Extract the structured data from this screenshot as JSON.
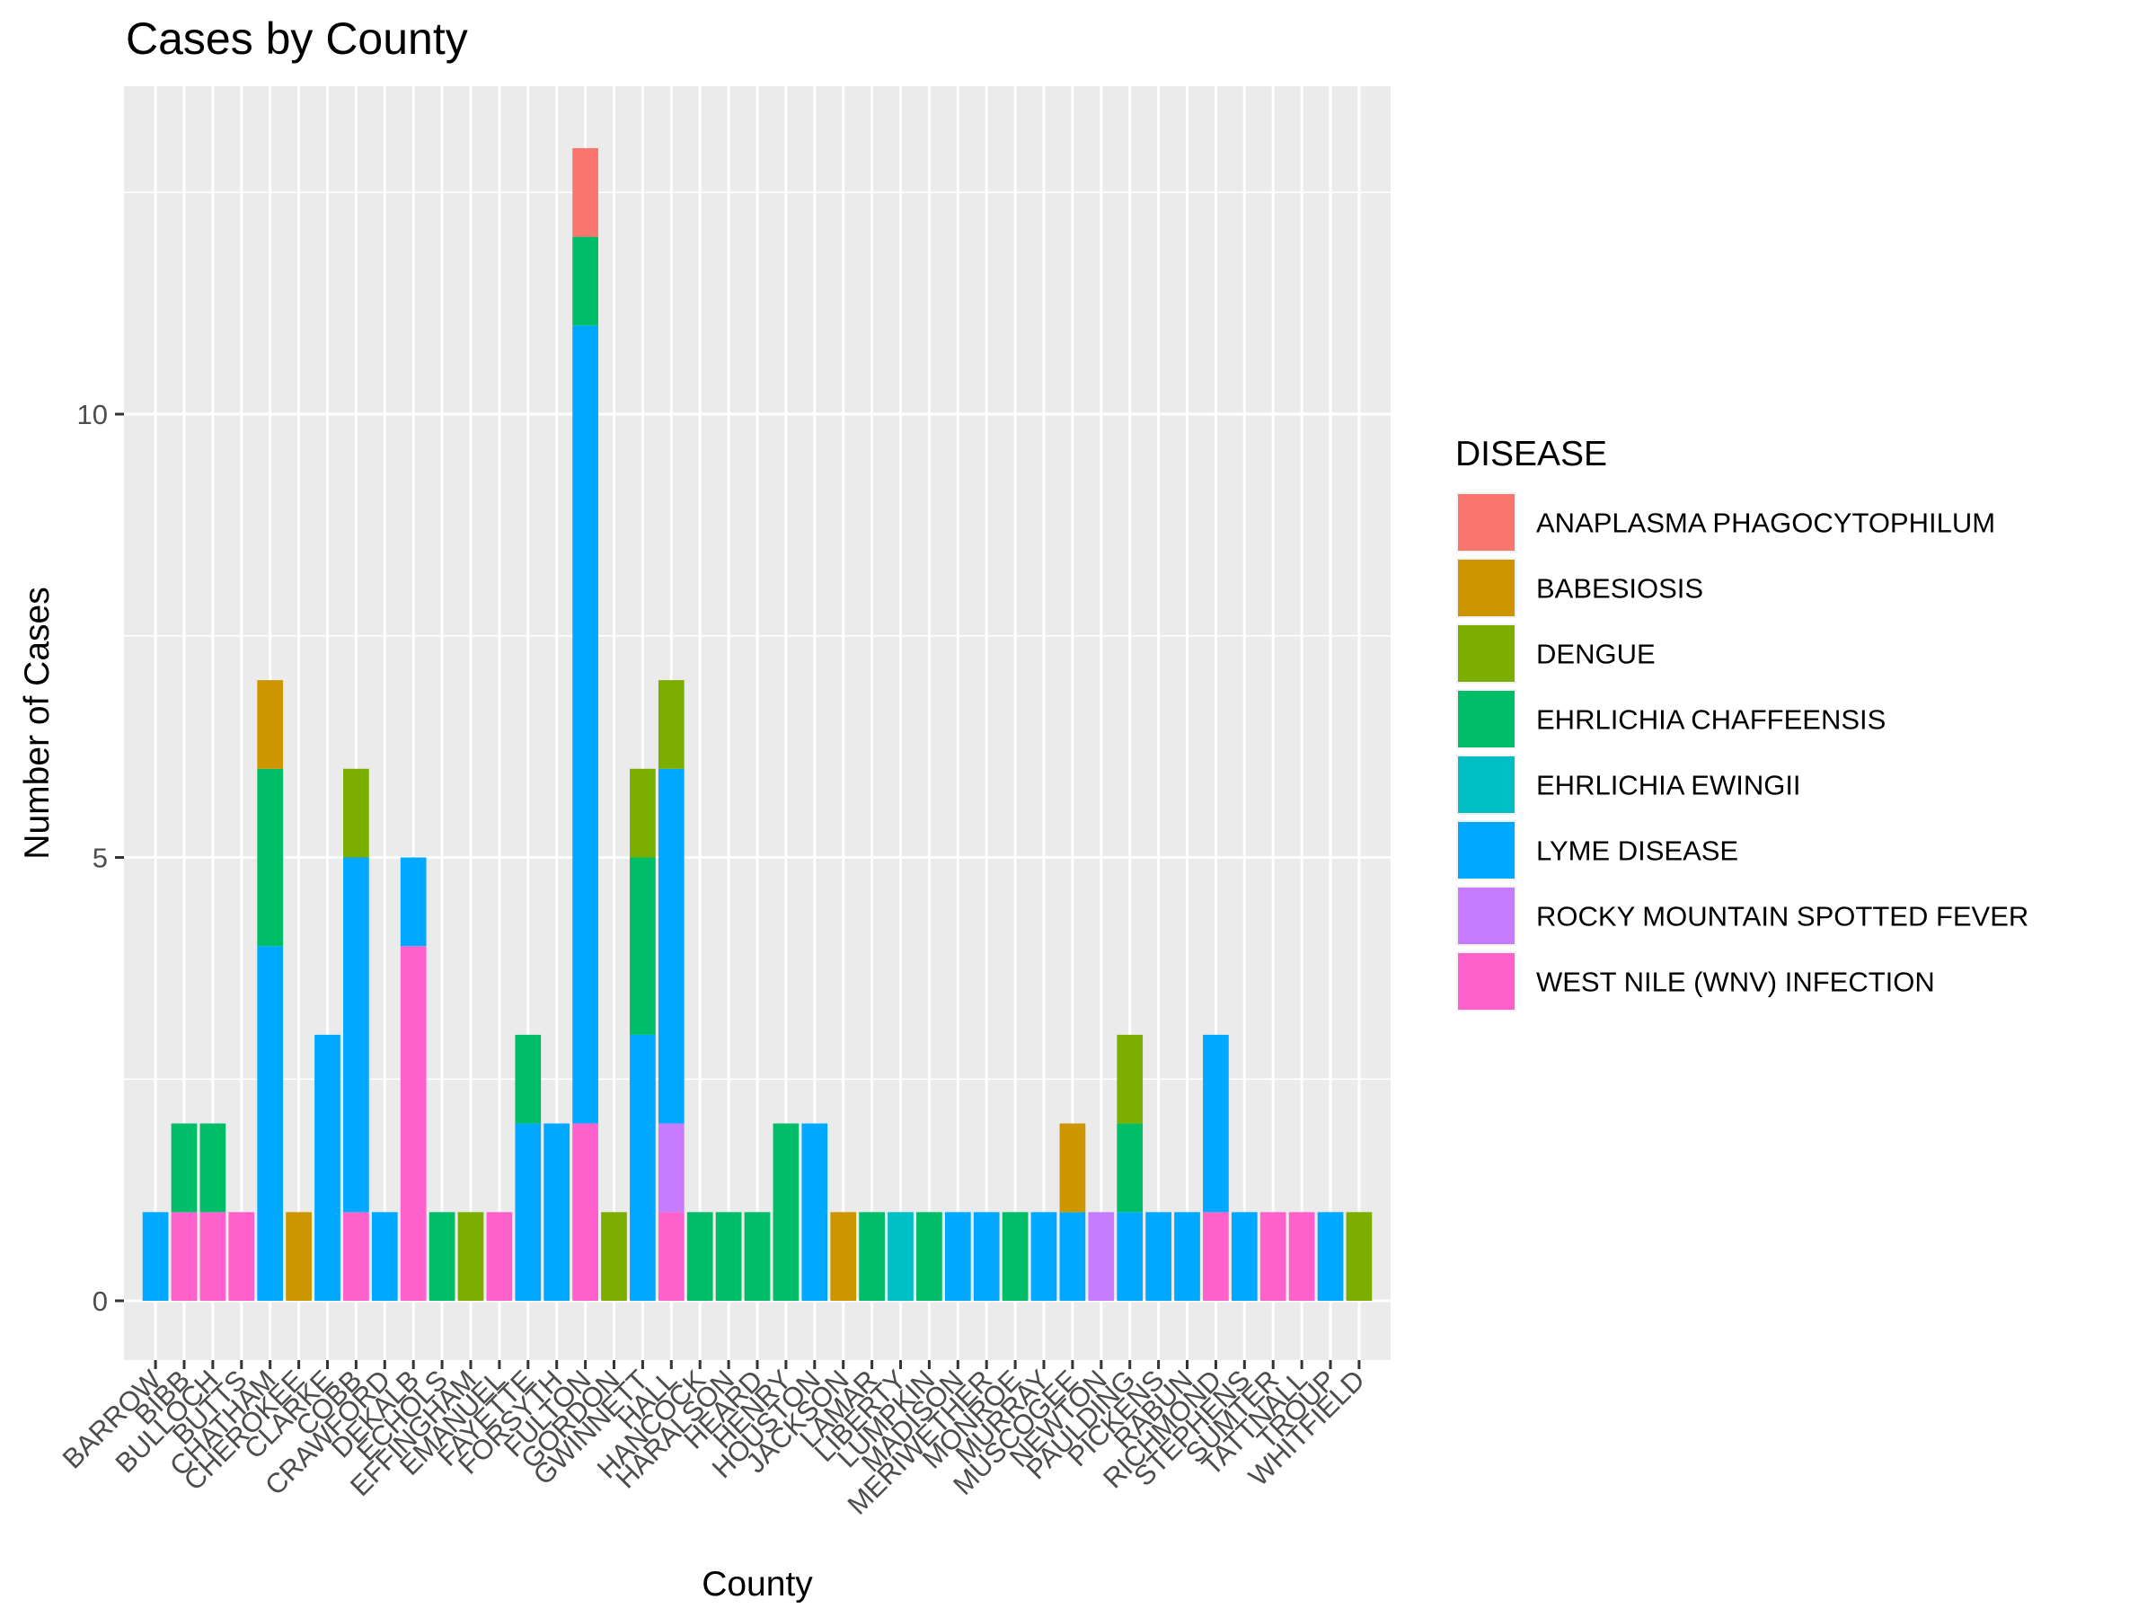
{
  "chart_data": {
    "type": "bar",
    "stacked": true,
    "title": "Cases by County",
    "xlabel": "County",
    "ylabel": "Number of Cases",
    "ylim": [
      0,
      13.65
    ],
    "yticks": [
      0,
      5,
      10
    ],
    "grid": true,
    "legend": {
      "title": "DISEASE",
      "position": "right"
    },
    "categories": [
      "BARROW",
      "BIBB",
      "BULLOCH",
      "BUTTS",
      "CHATHAM",
      "CHEROKEE",
      "CLARKE",
      "COBB",
      "CRAWFORD",
      "DEKALB",
      "ECHOLS",
      "EFFINGHAM",
      "EMANUEL",
      "FAYETTE",
      "FORSYTH",
      "FULTON",
      "GORDON",
      "GWINNETT",
      "HALL",
      "HANCOCK",
      "HARALSON",
      "HEARD",
      "HENRY",
      "HOUSTON",
      "JACKSON",
      "LAMAR",
      "LIBERTY",
      "LUMPKIN",
      "MADISON",
      "MERIWETHER",
      "MONROE",
      "MURRAY",
      "MUSCOGEE",
      "NEWTON",
      "PAULDING",
      "PICKENS",
      "RABUN",
      "RICHMOND",
      "STEPHENS",
      "SUMTER",
      "TATTNALL",
      "TROUP",
      "WHITFIELD"
    ],
    "series": [
      {
        "name": "ANAPLASMA PHAGOCYTOPHILUM",
        "color": "#F8766D",
        "values": [
          0,
          0,
          0,
          0,
          0,
          0,
          0,
          0,
          0,
          0,
          0,
          0,
          0,
          0,
          0,
          1,
          0,
          0,
          0,
          0,
          0,
          0,
          0,
          0,
          0,
          0,
          0,
          0,
          0,
          0,
          0,
          0,
          0,
          0,
          0,
          0,
          0,
          0,
          0,
          0,
          0,
          0,
          0
        ]
      },
      {
        "name": "BABESIOSIS",
        "color": "#CD9600",
        "values": [
          0,
          0,
          0,
          0,
          1,
          1,
          0,
          0,
          0,
          0,
          0,
          0,
          0,
          0,
          0,
          0,
          0,
          0,
          0,
          0,
          0,
          0,
          0,
          0,
          1,
          0,
          0,
          0,
          0,
          0,
          0,
          0,
          1,
          0,
          0,
          0,
          0,
          0,
          0,
          0,
          0,
          0,
          0
        ]
      },
      {
        "name": "DENGUE",
        "color": "#7CAE00",
        "values": [
          0,
          0,
          0,
          0,
          0,
          0,
          0,
          1,
          0,
          0,
          0,
          1,
          0,
          0,
          0,
          0,
          1,
          1,
          1,
          0,
          0,
          0,
          0,
          0,
          0,
          0,
          0,
          0,
          0,
          0,
          0,
          0,
          0,
          0,
          1,
          0,
          0,
          0,
          0,
          0,
          0,
          0,
          1
        ]
      },
      {
        "name": "EHRLICHIA CHAFFEENSIS",
        "color": "#00BE67",
        "values": [
          0,
          1,
          1,
          0,
          2,
          0,
          0,
          0,
          0,
          0,
          1,
          0,
          0,
          1,
          0,
          1,
          0,
          2,
          0,
          1,
          1,
          1,
          2,
          0,
          0,
          1,
          0,
          1,
          0,
          0,
          1,
          0,
          0,
          0,
          1,
          0,
          0,
          0,
          0,
          0,
          0,
          0,
          0
        ]
      },
      {
        "name": "EHRLICHIA EWINGII",
        "color": "#00BFC4",
        "values": [
          0,
          0,
          0,
          0,
          0,
          0,
          0,
          0,
          0,
          0,
          0,
          0,
          0,
          0,
          0,
          0,
          0,
          0,
          0,
          0,
          0,
          0,
          0,
          0,
          0,
          0,
          1,
          0,
          0,
          0,
          0,
          0,
          0,
          0,
          0,
          0,
          0,
          0,
          0,
          0,
          0,
          0,
          0
        ]
      },
      {
        "name": "LYME DISEASE",
        "color": "#00A9FF",
        "values": [
          1,
          0,
          0,
          0,
          4,
          0,
          3,
          4,
          1,
          1,
          0,
          0,
          0,
          2,
          2,
          9,
          0,
          3,
          4,
          0,
          0,
          0,
          0,
          2,
          0,
          0,
          0,
          0,
          1,
          1,
          0,
          1,
          1,
          0,
          1,
          1,
          1,
          2,
          1,
          0,
          0,
          1,
          0
        ]
      },
      {
        "name": "ROCKY MOUNTAIN SPOTTED FEVER",
        "color": "#C77CFF",
        "values": [
          0,
          0,
          0,
          0,
          0,
          0,
          0,
          0,
          0,
          0,
          0,
          0,
          0,
          0,
          0,
          0,
          0,
          0,
          1,
          0,
          0,
          0,
          0,
          0,
          0,
          0,
          0,
          0,
          0,
          0,
          0,
          0,
          0,
          1,
          0,
          0,
          0,
          0,
          0,
          0,
          0,
          0,
          0
        ]
      },
      {
        "name": "WEST NILE (WNV) INFECTION",
        "color": "#FF61CC",
        "values": [
          0,
          1,
          1,
          1,
          0,
          0,
          0,
          1,
          0,
          4,
          0,
          0,
          1,
          0,
          0,
          2,
          0,
          0,
          1,
          0,
          0,
          0,
          0,
          0,
          0,
          0,
          0,
          0,
          0,
          0,
          0,
          0,
          0,
          0,
          0,
          0,
          0,
          1,
          0,
          1,
          1,
          0,
          0
        ]
      }
    ]
  }
}
